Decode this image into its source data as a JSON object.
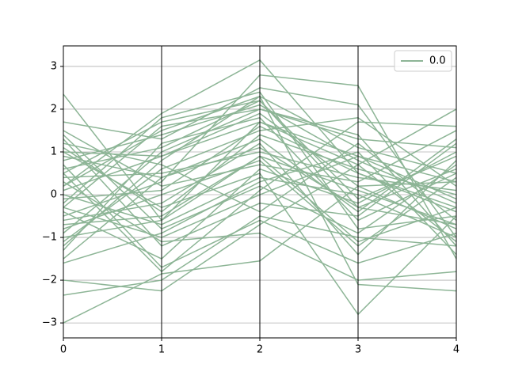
{
  "chart_data": {
    "type": "parallel",
    "x": [
      0,
      1,
      2,
      3,
      4
    ],
    "xlim": [
      0,
      4
    ],
    "xticks": [
      0,
      1,
      2,
      3,
      4
    ],
    "ylim": [
      -3.35,
      3.48
    ],
    "yticks": [
      {
        "value": -3,
        "label": "−3"
      },
      {
        "value": -2,
        "label": "−2"
      },
      {
        "value": -1,
        "label": "−1"
      },
      0,
      1,
      2,
      3
    ],
    "grid": true,
    "legend": "upper right",
    "series": [
      {
        "name": "0.0",
        "color": "#8db596",
        "values": [
          [
            2.35,
            -0.6,
            0.9,
            0.1,
            -0.7
          ],
          [
            -3.0,
            -1.85,
            -1.55,
            0.2,
            0.3
          ],
          [
            -2.35,
            -2.0,
            -0.5,
            -1.0,
            -1.2
          ],
          [
            0.2,
            1.9,
            3.15,
            0.5,
            -0.3
          ],
          [
            -0.5,
            0.3,
            2.8,
            2.55,
            -1.5
          ],
          [
            1.0,
            -0.3,
            0.5,
            -2.8,
            -0.5
          ],
          [
            -2.0,
            -2.25,
            -0.7,
            0.7,
            2.0
          ],
          [
            1.7,
            1.3,
            2.5,
            2.1,
            -1.0
          ],
          [
            -1.2,
            0.8,
            2.3,
            -2.1,
            -2.25
          ],
          [
            0.5,
            -1.8,
            0.1,
            1.7,
            1.6
          ],
          [
            -0.3,
            1.6,
            2.0,
            1.3,
            1.1
          ],
          [
            0.9,
            0.4,
            1.1,
            -0.3,
            0.6
          ],
          [
            -1.0,
            -0.6,
            1.7,
            0.9,
            -0.1
          ],
          [
            1.3,
            -1.2,
            -0.2,
            -0.5,
            1.2
          ],
          [
            0.1,
            0.9,
            1.9,
            0.2,
            -0.8
          ],
          [
            -0.8,
            0.0,
            0.8,
            -1.2,
            0.4
          ],
          [
            0.6,
            1.1,
            2.2,
            -0.1,
            0.9
          ],
          [
            -1.6,
            -0.9,
            0.3,
            1.0,
            -1.4
          ],
          [
            1.1,
            -0.4,
            1.4,
            0.6,
            0.0
          ],
          [
            -0.2,
            1.8,
            2.4,
            -0.8,
            -0.5
          ],
          [
            0.3,
            -1.1,
            -0.9,
            -2.0,
            -1.8
          ],
          [
            -1.1,
            0.6,
            1.5,
            1.8,
            0.2
          ],
          [
            1.5,
            0.2,
            0.7,
            0.3,
            1.5
          ],
          [
            -0.6,
            -0.2,
            1.2,
            -1.4,
            0.8
          ],
          [
            0.8,
            1.4,
            2.1,
            0.8,
            -0.2
          ],
          [
            0.0,
            -0.7,
            0.4,
            0.0,
            -1.0
          ],
          [
            -1.3,
            1.2,
            1.8,
            -0.6,
            0.5
          ],
          [
            1.2,
            0.7,
            -0.4,
            1.2,
            -0.6
          ],
          [
            -0.4,
            -1.5,
            0.6,
            -0.2,
            1.0
          ],
          [
            0.4,
            0.5,
            1.0,
            0.4,
            0.1
          ],
          [
            -0.9,
            1.0,
            2.0,
            1.4,
            -1.2
          ],
          [
            1.4,
            -0.8,
            0.2,
            -0.9,
            0.7
          ],
          [
            -0.1,
            0.1,
            1.6,
            0.5,
            -0.4
          ],
          [
            0.7,
            -1.7,
            -0.6,
            -1.6,
            -0.9
          ],
          [
            -1.5,
            0.4,
            1.3,
            -0.4,
            1.3
          ],
          [
            0.2,
            1.5,
            2.3,
            1.1,
            0.5
          ],
          [
            -0.7,
            -0.5,
            0.9,
            -1.1,
            -0.3
          ],
          [
            1.0,
            0.9,
            1.7,
            0.7,
            -1.1
          ],
          [
            -0.3,
            -1.0,
            0.0,
            0.9,
            0.3
          ],
          [
            0.5,
            1.7,
            2.2,
            -0.3,
            -0.7
          ]
        ]
      }
    ]
  }
}
